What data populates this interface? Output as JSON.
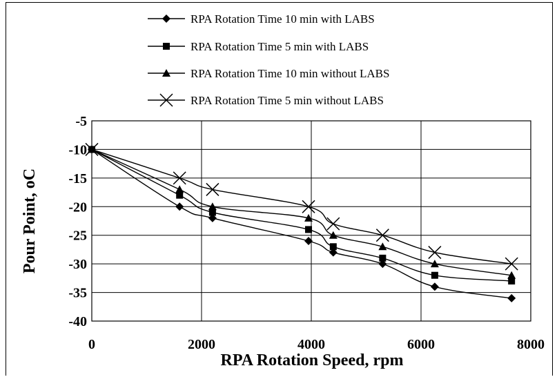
{
  "chart_data": {
    "type": "line",
    "title": "",
    "xlabel": "RPA Rotation Speed, rpm",
    "ylabel": "Pour Point, oC",
    "xlim": [
      0,
      8000
    ],
    "ylim": [
      -40,
      -5
    ],
    "x_ticks": [
      "0",
      "2000",
      "4000",
      "6000",
      "8000"
    ],
    "y_ticks": [
      "-5",
      "-10",
      "-15",
      "-20",
      "-25",
      "-30",
      "-35",
      "-40"
    ],
    "grid": true,
    "legend_position": "top",
    "x": [
      0,
      1600,
      2200,
      3950,
      4400,
      5300,
      6250,
      7650
    ],
    "series": [
      {
        "name": "RPA Rotation Time 10 min with LABS",
        "marker": "diamond",
        "values": [
          -10,
          -20,
          -22,
          -26,
          -28,
          -30,
          -34,
          -36
        ]
      },
      {
        "name": "RPA Rotation Time 5 min with LABS",
        "marker": "square",
        "values": [
          -10,
          -18,
          -21,
          -24,
          -27,
          -29,
          -32,
          -33
        ]
      },
      {
        "name": "RPA Rotation Time 10 min without LABS",
        "marker": "triangle",
        "values": [
          -10,
          -17,
          -20,
          -22,
          -25,
          -27,
          -30,
          -32
        ]
      },
      {
        "name": "RPA Rotation Time 5 min without LABS",
        "marker": "x",
        "values": [
          -10,
          -15,
          -17,
          -20,
          -23,
          -25,
          -28,
          -30
        ]
      }
    ],
    "colors": {
      "line": "#000000",
      "grid": "#000000",
      "background": "#ffffff"
    }
  }
}
